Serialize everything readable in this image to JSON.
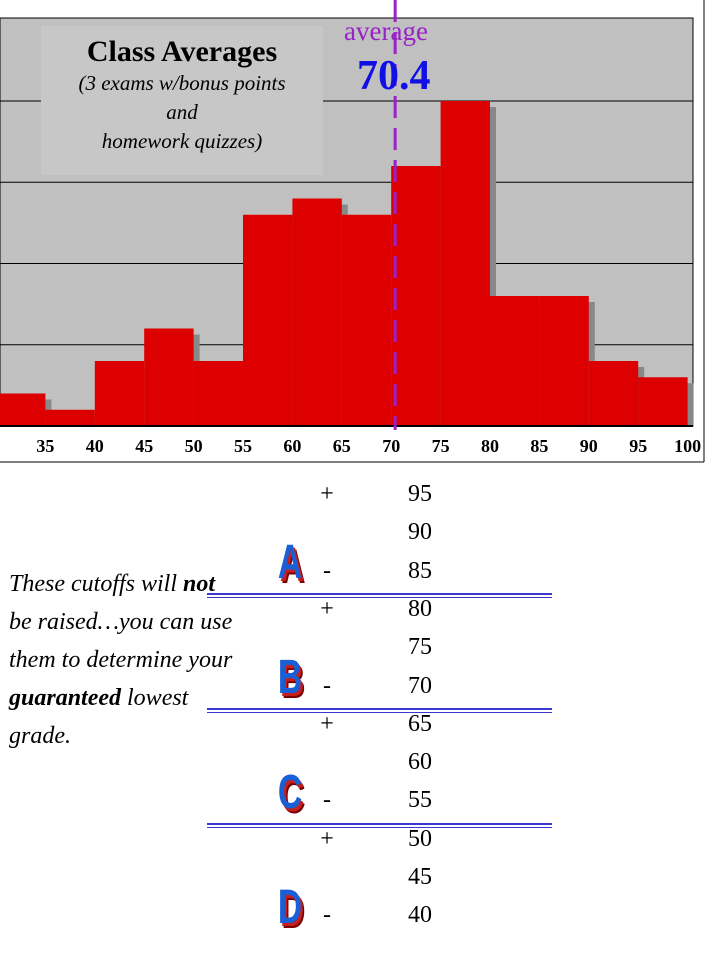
{
  "chart_data": {
    "type": "bar",
    "title": "Class Averages",
    "subtitle_line1": "(3 exams w/bonus points",
    "subtitle_line2": "and",
    "subtitle_line3": "homework quizzes)",
    "bins": [
      30,
      35,
      40,
      45,
      50,
      55,
      60,
      65,
      70,
      75,
      80,
      85,
      90,
      95
    ],
    "bin_width": 5,
    "values": [
      2,
      1,
      4,
      6,
      4,
      13,
      14,
      13,
      16,
      20,
      8,
      8,
      4,
      3
    ],
    "tick_labels": [
      "35",
      "40",
      "45",
      "50",
      "55",
      "60",
      "65",
      "70",
      "75",
      "80",
      "85",
      "90",
      "95",
      "100"
    ],
    "xlim": [
      30,
      100
    ],
    "ylim": [
      0,
      25
    ],
    "grid": true,
    "average_label": "average",
    "average_value": "70.4",
    "average_x": 70.4,
    "colors": {
      "bar": "#dd0000",
      "shadow": "#888888",
      "average_line": "#9a20c8",
      "average_value": "#1010e6"
    }
  },
  "note": {
    "part1": "These cutoffs will ",
    "bold1": "not",
    "part2": " be raised…you can use them to determine your ",
    "bold2": "guaranteed",
    "part3": " lowest grade."
  },
  "grades": [
    {
      "letter": "A",
      "rows": [
        {
          "sign": "+",
          "value": "95"
        },
        {
          "sign": "",
          "value": "90"
        },
        {
          "sign": "-",
          "value": "85"
        }
      ]
    },
    {
      "letter": "B",
      "rows": [
        {
          "sign": "+",
          "value": "80"
        },
        {
          "sign": "",
          "value": "75"
        },
        {
          "sign": "-",
          "value": "70"
        }
      ]
    },
    {
      "letter": "C",
      "rows": [
        {
          "sign": "+",
          "value": "65"
        },
        {
          "sign": "",
          "value": "60"
        },
        {
          "sign": "-",
          "value": "55"
        }
      ]
    },
    {
      "letter": "D",
      "rows": [
        {
          "sign": "+",
          "value": "50"
        },
        {
          "sign": "",
          "value": "45"
        },
        {
          "sign": "-",
          "value": "40"
        }
      ]
    }
  ]
}
